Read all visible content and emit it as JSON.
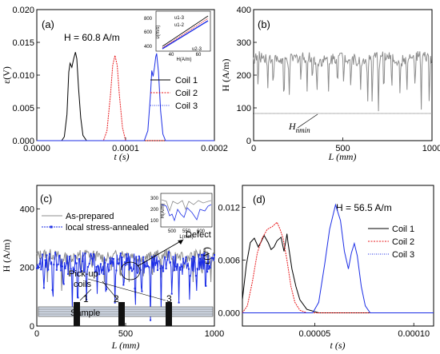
{
  "colors": {
    "black": "#000000",
    "red": "#e8191c",
    "blue": "#1c2ee6",
    "gray": "#8c8c8c"
  },
  "chart_data": [
    {
      "panel": "(a)",
      "type": "line",
      "annotation": "H = 60.8 A/m",
      "xlabel": "t (s)",
      "ylabel": "ε(V)",
      "xlim": [
        0,
        0.0002
      ],
      "ylim": [
        0,
        0.02
      ],
      "xticks": [
        "0.0000",
        "0.0001",
        "0.0002"
      ],
      "yticks": [
        "0.000",
        "0.005",
        "0.010",
        "0.015",
        "0.020"
      ],
      "series": [
        {
          "name": "Coil 1",
          "color": "#000000",
          "points": [
            [
              0,
              0
            ],
            [
              2.8e-05,
              0
            ],
            [
              3.1e-05,
              0.0006
            ],
            [
              3.4e-05,
              0.004
            ],
            [
              3.6e-05,
              0.0105
            ],
            [
              3.75e-05,
              0.0118
            ],
            [
              3.95e-05,
              0.0112
            ],
            [
              4.15e-05,
              0.0125
            ],
            [
              4.35e-05,
              0.0135
            ],
            [
              4.5e-05,
              0.0125
            ],
            [
              4.7e-05,
              0.008
            ],
            [
              4.95e-05,
              0.0035
            ],
            [
              5.2e-05,
              0.0008
            ],
            [
              5.6e-05,
              0
            ],
            [
              0.0002,
              0
            ]
          ]
        },
        {
          "name": "Coil 2",
          "color": "#e8191c",
          "points": [
            [
              0,
              0
            ],
            [
              7.5e-05,
              0
            ],
            [
              7.9e-05,
              0.0015
            ],
            [
              8.3e-05,
              0.007
            ],
            [
              8.55e-05,
              0.0115
            ],
            [
              8.8e-05,
              0.013
            ],
            [
              9.05e-05,
              0.0115
            ],
            [
              9.3e-05,
              0.007
            ],
            [
              9.65e-05,
              0.002
            ],
            [
              0.0001,
              0
            ],
            [
              0.0002,
              0
            ]
          ]
        },
        {
          "name": "Coil 3",
          "color": "#1c2ee6",
          "points": [
            [
              0,
              0
            ],
            [
              0.000121,
              0
            ],
            [
              0.000125,
              0.0015
            ],
            [
              0.000128,
              0.007
            ],
            [
              0.0001295,
              0.0107
            ],
            [
              0.000131,
              0.0098
            ],
            [
              0.0001325,
              0.0112
            ],
            [
              0.000134,
              0.0128
            ],
            [
              0.000135,
              0.0133
            ],
            [
              0.000137,
              0.0105
            ],
            [
              0.0001395,
              0.0045
            ],
            [
              0.000142,
              0.001
            ],
            [
              0.000145,
              0
            ],
            [
              0.0002,
              0
            ]
          ]
        }
      ],
      "inset": {
        "xlabel": "H(A/m)",
        "ylabel": "υ(m/s)",
        "xticks": [
          "40",
          "60"
        ],
        "yticks": [
          "400",
          "600",
          "800"
        ],
        "labels": [
          "υ1-3",
          "υ1-2",
          "υ2-3"
        ]
      }
    },
    {
      "panel": "(b)",
      "type": "line",
      "xlabel": "L (mm)",
      "ylabel": "H (A/m)",
      "xlim": [
        0,
        1000
      ],
      "ylim": [
        0,
        400
      ],
      "xticks": [
        "0",
        "500",
        "1000"
      ],
      "yticks": [
        "0",
        "100",
        "200",
        "300",
        "400"
      ],
      "annotation": "H_nmin",
      "hmin_level": 83,
      "series": [
        {
          "name": "",
          "color": "#8c8c8c",
          "baseline": 250,
          "noise": 18,
          "spikes": [
            [
              25,
              150
            ],
            [
              80,
              160
            ],
            [
              110,
              150
            ],
            [
              170,
              88
            ],
            [
              200,
              140
            ],
            [
              265,
              170
            ],
            [
              300,
              150
            ],
            [
              330,
              175
            ],
            [
              355,
              130
            ],
            [
              420,
              150
            ],
            [
              470,
              160
            ],
            [
              505,
              165
            ],
            [
              545,
              150
            ],
            [
              600,
              155
            ],
            [
              640,
              120
            ],
            [
              665,
              88
            ],
            [
              700,
              90
            ],
            [
              730,
              130
            ],
            [
              775,
              150
            ],
            [
              820,
              145
            ],
            [
              860,
              155
            ],
            [
              905,
              150
            ],
            [
              940,
              95
            ],
            [
              985,
              90
            ]
          ]
        }
      ]
    },
    {
      "panel": "(c)",
      "type": "line",
      "xlabel": "L (mm)",
      "ylabel": "H (A/m)",
      "xlim": [
        0,
        1000
      ],
      "ylim": [
        0,
        480
      ],
      "xticks": [
        "0",
        "500",
        "1000"
      ],
      "yticks": [
        "0",
        "200",
        "400"
      ],
      "legend": [
        "As-prepared",
        "local stress-annealed"
      ],
      "annotations": [
        "Pick-up coils",
        "Sample",
        "1",
        "2",
        "3",
        "Defect"
      ],
      "series": [
        {
          "name": "As-prepared",
          "color": "#8c8c8c",
          "baseline": 240,
          "noise": 18,
          "spikes": [
            [
              60,
              150
            ],
            [
              140,
              120
            ],
            [
              180,
              170
            ],
            [
              250,
              140
            ],
            [
              310,
              180
            ],
            [
              380,
              150
            ],
            [
              420,
              190
            ],
            [
              470,
              130
            ],
            [
              520,
              150
            ],
            [
              560,
              180
            ],
            [
              600,
              170
            ],
            [
              650,
              140
            ],
            [
              700,
              165
            ],
            [
              770,
              150
            ],
            [
              830,
              180
            ],
            [
              880,
              150
            ],
            [
              930,
              140
            ],
            [
              980,
              150
            ]
          ]
        },
        {
          "name": "local stress-annealed",
          "color": "#1c2ee6",
          "baseline": 215,
          "noise": 35,
          "spikes": [
            [
              40,
              130
            ],
            [
              90,
              40
            ],
            [
              150,
              100
            ],
            [
              200,
              60
            ],
            [
              230,
              10
            ],
            [
              280,
              90
            ],
            [
              340,
              110
            ],
            [
              390,
              60
            ],
            [
              440,
              80
            ],
            [
              490,
              100
            ],
            [
              555,
              40
            ],
            [
              590,
              80
            ],
            [
              640,
              20
            ],
            [
              700,
              60
            ],
            [
              760,
              110
            ],
            [
              800,
              80
            ],
            [
              860,
              90
            ],
            [
              900,
              120
            ],
            [
              950,
              90
            ]
          ]
        }
      ],
      "inset": {
        "xlabel": "L(mm)",
        "ylabel": "H(A/m)",
        "xticks": [
          "500",
          "550",
          "600"
        ],
        "yticks": [
          "100",
          "200",
          "300"
        ]
      }
    },
    {
      "panel": "(d)",
      "type": "line",
      "annotation": "H = 56.5 A/m",
      "xlabel": "t (s)",
      "ylabel": "ε(V)",
      "xlim": [
        1.35e-05,
        0.00011
      ],
      "ylim": [
        -0.0015,
        0.0145
      ],
      "xticks": [
        "0.00005",
        "0.00010"
      ],
      "yticks": [
        "0.000",
        "0.006",
        "0.012"
      ],
      "series": [
        {
          "name": "Coil 1",
          "color": "#000000",
          "points": [
            [
              1.35e-05,
              0.0015
            ],
            [
              1.55e-05,
              0.0055
            ],
            [
              1.75e-05,
              0.008
            ],
            [
              1.95e-05,
              0.0085
            ],
            [
              2.15e-05,
              0.0075
            ],
            [
              2.3e-05,
              0.0081
            ],
            [
              2.45e-05,
              0.0088
            ],
            [
              2.65e-05,
              0.008
            ],
            [
              2.8e-05,
              0.0072
            ],
            [
              2.95e-05,
              0.0075
            ],
            [
              3.1e-05,
              0.0082
            ],
            [
              3.3e-05,
              0.0086
            ],
            [
              3.45e-05,
              0.007
            ],
            [
              3.55e-05,
              0.0083
            ],
            [
              3.6e-05,
              0.009
            ],
            [
              3.65e-05,
              0.008
            ],
            [
              3.85e-05,
              0.005
            ],
            [
              4.05e-05,
              0.003
            ],
            [
              4.25e-05,
              0.0015
            ],
            [
              4.6e-05,
              0.0004
            ],
            [
              5.2e-05,
              0
            ],
            [
              0.00011,
              0
            ]
          ]
        },
        {
          "name": "Coil 2",
          "color": "#e8191c",
          "points": [
            [
              1.35e-05,
              0
            ],
            [
              1.6e-05,
              0.0008
            ],
            [
              1.85e-05,
              0.0035
            ],
            [
              2.1e-05,
              0.0068
            ],
            [
              2.35e-05,
              0.0085
            ],
            [
              2.6e-05,
              0.0095
            ],
            [
              2.85e-05,
              0.0098
            ],
            [
              3.1e-05,
              0.0103
            ],
            [
              3.25e-05,
              0.0095
            ],
            [
              3.4e-05,
              0.0085
            ],
            [
              3.6e-05,
              0.006
            ],
            [
              3.8e-05,
              0.003
            ],
            [
              4e-05,
              0.0012
            ],
            [
              4.25e-05,
              0.0003
            ],
            [
              4.6e-05,
              0
            ],
            [
              0.00011,
              0
            ]
          ]
        },
        {
          "name": "Coil 3",
          "color": "#1c2ee6",
          "points": [
            [
              1.35e-05,
              0
            ],
            [
              4.9e-05,
              0
            ],
            [
              5.2e-05,
              0.0012
            ],
            [
              5.5e-05,
              0.0055
            ],
            [
              5.75e-05,
              0.0095
            ],
            [
              6.05e-05,
              0.0123
            ],
            [
              6.3e-05,
              0.0105
            ],
            [
              6.5e-05,
              0.007
            ],
            [
              6.7e-05,
              0.005
            ],
            [
              6.85e-05,
              0.0068
            ],
            [
              7e-05,
              0.0079
            ],
            [
              7.15e-05,
              0.0065
            ],
            [
              7.35e-05,
              0.003
            ],
            [
              7.55e-05,
              0.0008
            ],
            [
              7.8e-05,
              0
            ],
            [
              0.00011,
              0
            ]
          ]
        }
      ]
    }
  ]
}
